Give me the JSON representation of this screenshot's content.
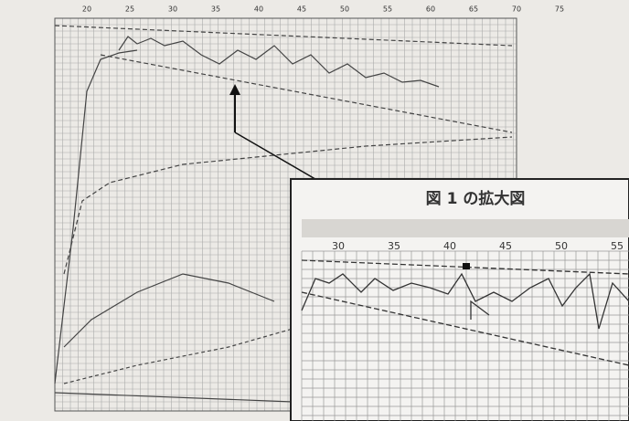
{
  "main_chart": {
    "x_labels": [
      "20",
      "25",
      "30",
      "35",
      "40",
      "45",
      "50",
      "55",
      "60",
      "65",
      "70",
      "75"
    ]
  },
  "inset": {
    "title": "図 1 の拡大図",
    "x_labels": [
      "30",
      "35",
      "40",
      "45",
      "50",
      "55"
    ]
  }
}
